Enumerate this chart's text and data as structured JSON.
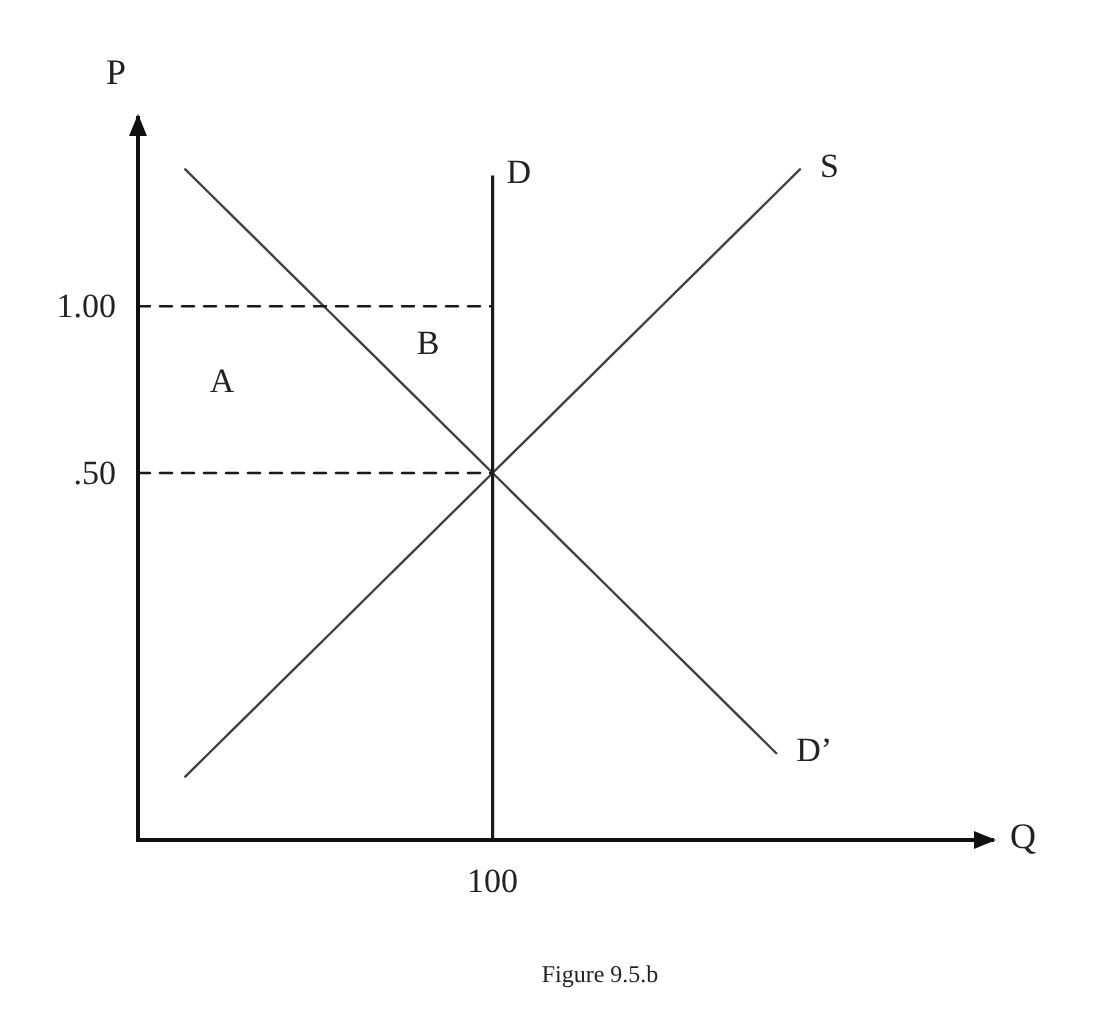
{
  "chart_data": {
    "type": "line",
    "xlabel": "Q",
    "ylabel": "P",
    "categories": [
      null,
      null,
      null,
      null,
      null,
      null,
      null,
      null,
      null,
      null,
      null,
      null,
      null,
      null,
      null,
      "100",
      null,
      null,
      null,
      null,
      null,
      null,
      null,
      null,
      null,
      null,
      null,
      null,
      null,
      null,
      null,
      null,
      null,
      null,
      null,
      null,
      null
    ],
    "ylim": [
      -0.6,
      1.57
    ],
    "yticks": [
      {
        "value": 0.5,
        "label": ".50"
      },
      {
        "value": 1,
        "label": "1.00"
      }
    ],
    "series": [
      {
        "name": "D’",
        "color": "#404040",
        "values": [
          null,
          null,
          1.41,
          1.34,
          1.27,
          1.2,
          1.13,
          1.06,
          0.99,
          0.92,
          0.85,
          0.78,
          0.71,
          0.64,
          0.57,
          0.5,
          0.43,
          0.36,
          0.29,
          0.22,
          0.15,
          0.08,
          0.01,
          -0.06,
          -0.13,
          -0.2,
          -0.27,
          -0.34,
          null,
          null,
          null,
          null,
          null,
          null,
          null,
          null,
          null
        ]
      },
      {
        "name": "S",
        "color": "#404040",
        "values": [
          null,
          null,
          -0.41,
          -0.34,
          -0.27,
          -0.2,
          -0.13,
          -0.06,
          0.01,
          0.08,
          0.15,
          0.22,
          0.29,
          0.36,
          0.43,
          0.5,
          0.57,
          0.64,
          0.71,
          0.78,
          0.85,
          0.92,
          0.99,
          1.06,
          1.13,
          1.2,
          1.27,
          1.34,
          1.41,
          null,
          null,
          null,
          null,
          null,
          null,
          null,
          null
        ]
      },
      {
        "color": "#1a1a1a",
        "line_style": "dashed",
        "values": [
          1,
          1,
          1,
          1,
          1,
          1,
          1,
          1,
          1,
          1,
          1,
          1,
          1,
          1,
          1,
          1,
          null,
          null,
          null,
          null,
          null,
          null,
          null,
          null,
          null,
          null,
          null,
          null,
          null,
          null,
          null,
          null,
          null,
          null,
          null,
          null,
          null
        ]
      },
      {
        "color": "#1a1a1a",
        "line_style": "dashed",
        "values": [
          0.5,
          0.5,
          0.5,
          0.5,
          0.5,
          0.5,
          0.5,
          0.5,
          0.5,
          0.5,
          0.5,
          0.5,
          0.5,
          0.5,
          0.5,
          0.5,
          null,
          null,
          null,
          null,
          null,
          null,
          null,
          null,
          null,
          null,
          null,
          null,
          null,
          null,
          null,
          null,
          null,
          null,
          null,
          null,
          null
        ]
      }
    ],
    "ref_lines": [
      {
        "axis": "x",
        "value": "100",
        "label": "D",
        "color": "#1a1a1a"
      }
    ],
    "annotations": [
      "A",
      "B",
      "Figure 9.5.b"
    ]
  }
}
